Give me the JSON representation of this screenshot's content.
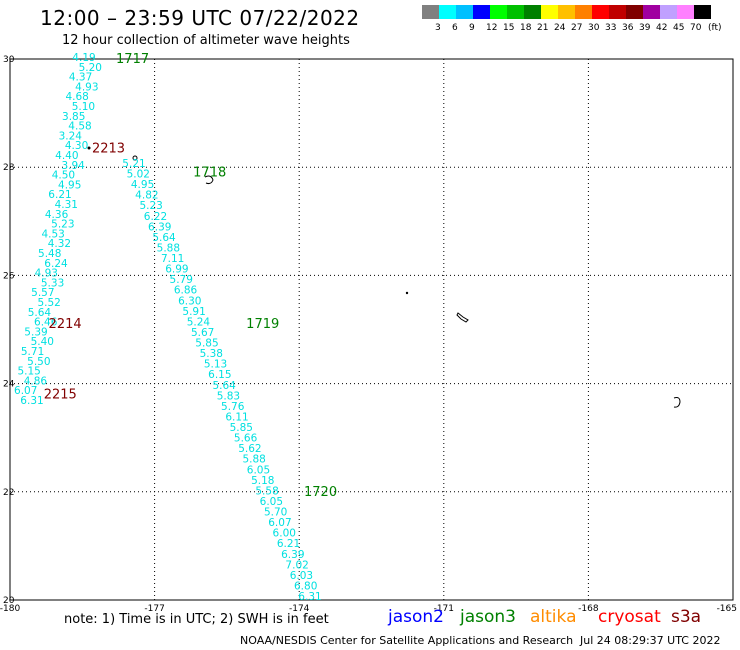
{
  "header": {
    "title": "12:00 – 23:59 UTC 07/22/2022",
    "subtitle": "12 hour collection of altimeter wave heights"
  },
  "color_scale": {
    "unit": "(ft)",
    "swatches": [
      "#808080",
      "#00ffff",
      "#00c0ff",
      "#0000ff",
      "#00ff00",
      "#00c000",
      "#008000",
      "#ffff00",
      "#ffc000",
      "#ff8000",
      "#ff0000",
      "#c00000",
      "#800000",
      "#a000a0",
      "#c0a0ff",
      "#ff80ff",
      "#000000"
    ],
    "labels": [
      "3",
      "6",
      "9",
      "12",
      "15",
      "18",
      "21",
      "24",
      "27",
      "30",
      "33",
      "36",
      "39",
      "42",
      "45",
      "70"
    ]
  },
  "map": {
    "lon_range": [
      -180,
      -165
    ],
    "lat_range": [
      20,
      30
    ],
    "lon_ticks": [
      "-180",
      "-177",
      "-174",
      "-171",
      "-168",
      "-165"
    ],
    "lat_ticks": [
      "30",
      "28",
      "26",
      "24",
      "22",
      "20"
    ],
    "track_color": "#00e0e0",
    "track1_values": [
      "4.19",
      "5.20",
      "4.37",
      "4.93",
      "4.68",
      "5.10",
      "3.85",
      "4.58",
      "3.24",
      "4.30",
      "4.40",
      "3.94",
      "4.50",
      "4.95",
      "6.21",
      "4.31",
      "4.36",
      "5.23",
      "4.53",
      "4.32",
      "5.48",
      "6.24",
      "4.93",
      "5.33",
      "5.57",
      "5.52",
      "5.64",
      "6.46",
      "5.39",
      "5.40",
      "5.71",
      "5.50",
      "5.15",
      "4.86",
      "6.07",
      "6.31"
    ],
    "track2_values": [
      "5.21",
      "5.02",
      "4.95",
      "4.82",
      "5.23",
      "6.22",
      "6.39",
      "5.64",
      "5.88",
      "7.11",
      "6.99",
      "5.79",
      "6.86",
      "6.30",
      "5.91",
      "5.24",
      "5.67",
      "5.85",
      "5.38",
      "5.13",
      "6.15",
      "5.64",
      "5.83",
      "5.76",
      "6.11",
      "5.85",
      "5.66",
      "5.62",
      "5.88",
      "6.05",
      "5.18",
      "5.58",
      "6.05",
      "5.70",
      "6.07",
      "6.00",
      "6.21",
      "6.39",
      "7.02",
      "6.03",
      "6.80",
      "6.31"
    ],
    "pass_labels": [
      {
        "text": "1717",
        "lon": -177.8,
        "lat": 30.0,
        "color": "#008000"
      },
      {
        "text": "2213",
        "lon": -178.3,
        "lat": 28.35,
        "color": "#800000"
      },
      {
        "text": "1718",
        "lon": -176.2,
        "lat": 27.9,
        "color": "#008000"
      },
      {
        "text": "2214",
        "lon": -179.2,
        "lat": 25.1,
        "color": "#800000"
      },
      {
        "text": "1719",
        "lon": -175.1,
        "lat": 25.1,
        "color": "#008000"
      },
      {
        "text": "2215",
        "lon": -179.3,
        "lat": 23.8,
        "color": "#800000"
      },
      {
        "text": "1720",
        "lon": -173.9,
        "lat": 22.0,
        "color": "#008000"
      }
    ]
  },
  "footer": {
    "note": "note:  1) Time is in UTC;  2) SWH is in feet",
    "satellites": [
      {
        "name": "jason2",
        "color": "#0000ff"
      },
      {
        "name": "jason3",
        "color": "#008000"
      },
      {
        "name": "altika",
        "color": "#ff8c00"
      },
      {
        "name": "cryosat",
        "color": "#ff0000"
      },
      {
        "name": "s3a",
        "color": "#800000"
      }
    ],
    "credit": "NOAA/NESDIS Center for Satellite Applications and Research",
    "timestamp": "Jul 24 08:29:37 UTC 2022"
  }
}
